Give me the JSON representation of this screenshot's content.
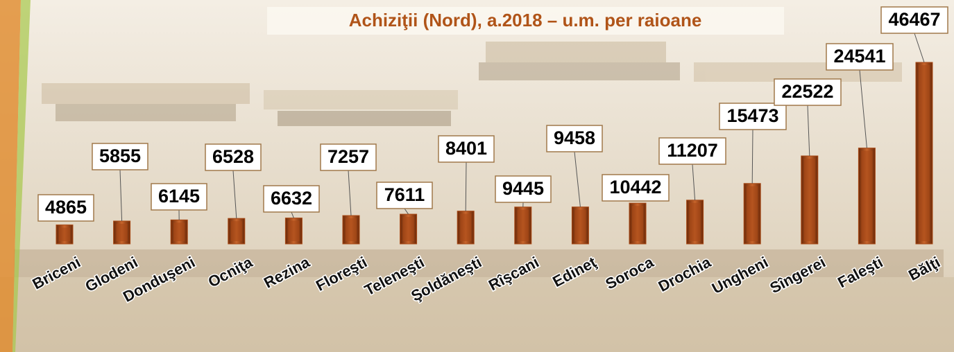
{
  "chart_data": {
    "type": "bar",
    "title": "Achiziţii (Nord), a.2018 – u.m. per raioane",
    "categories": [
      "Briceni",
      "Glodeni",
      "Donduşeni",
      "Ocniţa",
      "Rezina",
      "Floreşti",
      "Teleneşti",
      "Şoldăneşti",
      "Rîşcani",
      "Edineţ",
      "Soroca",
      "Drochia",
      "Ungheni",
      "Sîngerei",
      "Faleşti",
      "Bălţi"
    ],
    "values": [
      4865,
      5855,
      6145,
      6528,
      6632,
      7257,
      7611,
      8401,
      9445,
      9458,
      10442,
      11207,
      15473,
      22522,
      24541,
      46467
    ],
    "color": "#a84a17"
  }
}
